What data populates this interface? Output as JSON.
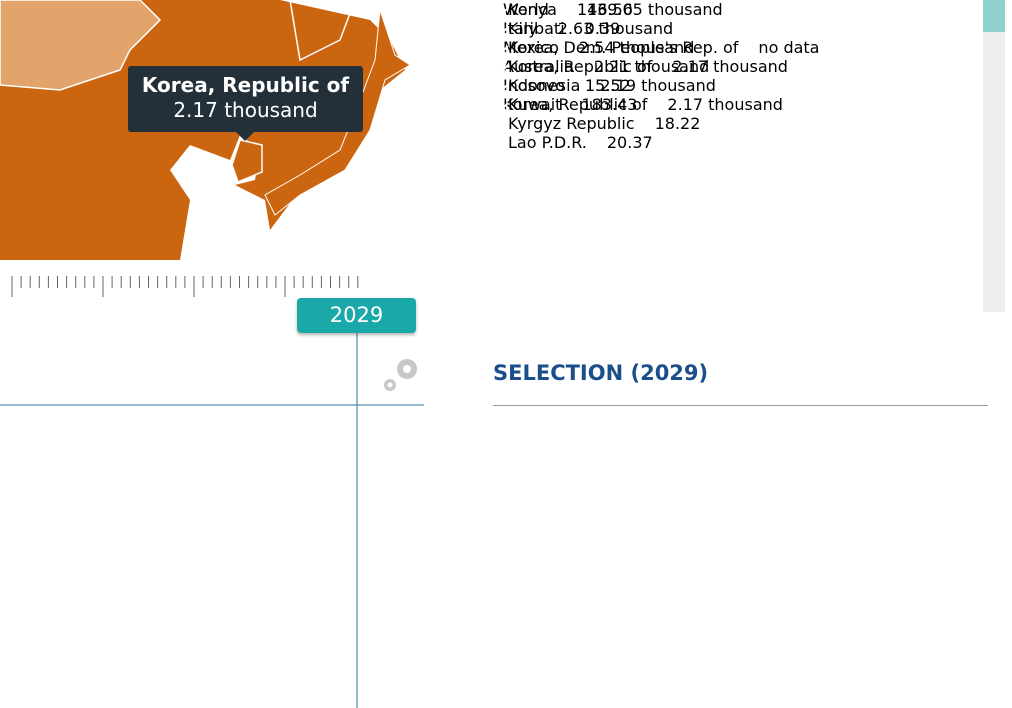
{
  "tooltip": {
    "title": "Korea, Republic of",
    "value": "2.17 thousand"
  },
  "timeline": {
    "year": "2029"
  },
  "country_list": [
    {
      "name": "Kenya",
      "value": "146.56"
    },
    {
      "name": "Kiribati",
      "value": "0.39"
    },
    {
      "name": "Korea, Dem. People's Rep. of",
      "value": "no data"
    },
    {
      "name": "Korea, Republic of",
      "value": "2.17 thousand"
    },
    {
      "name": "Kosovo",
      "value": "15.52"
    },
    {
      "name": "Kuwait",
      "value": "183.43"
    },
    {
      "name": "Kyrgyz Republic",
      "value": "18.22"
    },
    {
      "name": "Lao P.D.R.",
      "value": "20.37"
    }
  ],
  "selection": {
    "title": "SELECTION (2029)",
    "items": [
      {
        "name": "World",
        "value": "139.05 thousand",
        "color": "#c58a45"
      },
      {
        "name": "Italy",
        "value": "2.63 thousand",
        "color": "#7b4b4e"
      },
      {
        "name": "Mexico",
        "value": "2.54 thousand",
        "color": "#f0625a"
      },
      {
        "name": "Australia",
        "value": "2.21 thousand",
        "color": "#9a9a1c"
      },
      {
        "name": "Indonesia",
        "value": "2.19 thousand",
        "color": "#a07495"
      },
      {
        "name": "Korea, Republic of",
        "value": "2.17 thousand",
        "color": "#2b7a82"
      }
    ]
  }
}
